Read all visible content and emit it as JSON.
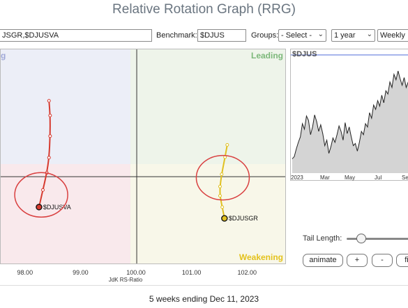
{
  "title": "Relative Rotation Graph (RRG)",
  "toolbar": {
    "symbols_value": "JSGR,$DJUSVA",
    "benchmark_label": "Benchmark:",
    "benchmark_value": "$DJUS",
    "groups_label": "Groups:",
    "groups_selected": "- Select -",
    "period_selected": "1 year",
    "frequency_selected": "Weekly"
  },
  "quadrants": {
    "leading": "Leading",
    "weakening": "Weakening",
    "improving": "g"
  },
  "chart_data": [
    {
      "type": "scatter",
      "title": "",
      "xlabel": "JdK RS-Ratio",
      "ylabel": "",
      "xlim": [
        97.55,
        102.7
      ],
      "ylim": [
        98.2,
        102.6
      ],
      "center": [
        100,
        100
      ],
      "x_ticks": [
        "98.00",
        "99.00",
        "100.00",
        "101.00",
        "102.00"
      ],
      "grid": false,
      "series": [
        {
          "name": "$DJUSVA",
          "color": "#d63a2f",
          "points": [
            {
              "x": 98.24,
              "y": 99.38
            },
            {
              "x": 98.31,
              "y": 99.73
            },
            {
              "x": 98.38,
              "y": 100.08
            },
            {
              "x": 98.42,
              "y": 100.39
            },
            {
              "x": 98.44,
              "y": 100.83
            },
            {
              "x": 98.44,
              "y": 101.25
            },
            {
              "x": 98.42,
              "y": 101.55
            }
          ]
        },
        {
          "name": "$DJUSGR",
          "color": "#e0c020",
          "points": [
            {
              "x": 101.58,
              "y": 99.15
            },
            {
              "x": 101.54,
              "y": 99.38
            },
            {
              "x": 101.5,
              "y": 99.61
            },
            {
              "x": 101.5,
              "y": 99.8
            },
            {
              "x": 101.53,
              "y": 100.05
            },
            {
              "x": 101.59,
              "y": 100.4
            },
            {
              "x": 101.63,
              "y": 100.65
            }
          ]
        }
      ]
    },
    {
      "type": "line",
      "title": "$DJUS",
      "x_ticks": [
        "2023",
        "Mar",
        "May",
        "Jul",
        "Se"
      ],
      "ylim": [
        0,
        1
      ],
      "values": [
        0.13,
        0.15,
        0.22,
        0.28,
        0.33,
        0.45,
        0.4,
        0.52,
        0.48,
        0.35,
        0.42,
        0.53,
        0.47,
        0.38,
        0.44,
        0.36,
        0.25,
        0.3,
        0.18,
        0.24,
        0.32,
        0.28,
        0.35,
        0.43,
        0.38,
        0.3,
        0.46,
        0.36,
        0.42,
        0.33,
        0.25,
        0.27,
        0.2,
        0.28,
        0.38,
        0.35,
        0.45,
        0.42,
        0.55,
        0.5,
        0.62,
        0.58,
        0.66,
        0.61,
        0.71,
        0.64,
        0.75,
        0.72,
        0.83,
        0.78,
        0.9,
        0.85,
        0.93,
        0.86,
        0.8,
        0.87,
        0.78,
        0.83,
        0.74,
        0.82,
        0.88,
        0.86
      ]
    }
  ],
  "circles": [
    {
      "cx": 98.28,
      "cy": 99.63
    },
    {
      "cx": 101.55,
      "cy": 99.98
    }
  ],
  "bubble_labels": [
    "$DJUSVA",
    "$DJUSGR"
  ],
  "controls": {
    "tail_length_label": "Tail Length:",
    "tail_length_value": 0.14,
    "animate_label": "animate",
    "plus_label": "+",
    "minus_label": "-",
    "fit_label": "fi"
  },
  "footer_text": "5 weeks ending Dec 11, 2023",
  "colors": {
    "leading_bg": "#eef4ea",
    "weakening_bg": "#f8f7e9",
    "lagging_bg": "#f9e9ec",
    "improving_bg": "#eceef7",
    "leading_text": "#7cb87a",
    "weakening_text": "#e4c21c",
    "improving_text": "#a0a8d8"
  }
}
